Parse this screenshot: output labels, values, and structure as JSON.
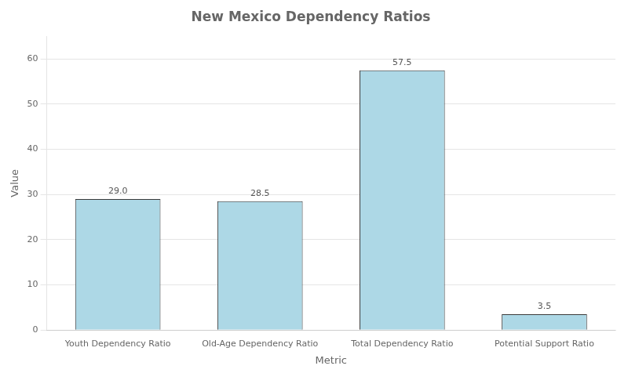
{
  "chart_data": {
    "type": "bar",
    "title": "New Mexico Dependency Ratios",
    "xlabel": "Metric",
    "ylabel": "Value",
    "categories": [
      "Youth Dependency Ratio",
      "Old-Age Dependency Ratio",
      "Total Dependency Ratio",
      "Potential Support Ratio"
    ],
    "values": [
      29.0,
      28.5,
      57.5,
      3.5
    ],
    "value_labels": [
      "29.0",
      "28.5",
      "57.5",
      "3.5"
    ],
    "color": "#add8e6",
    "ylim": [
      0,
      65
    ],
    "yticks": [
      0,
      10,
      20,
      30,
      40,
      50,
      60
    ],
    "grid": true,
    "data_labels": true
  }
}
